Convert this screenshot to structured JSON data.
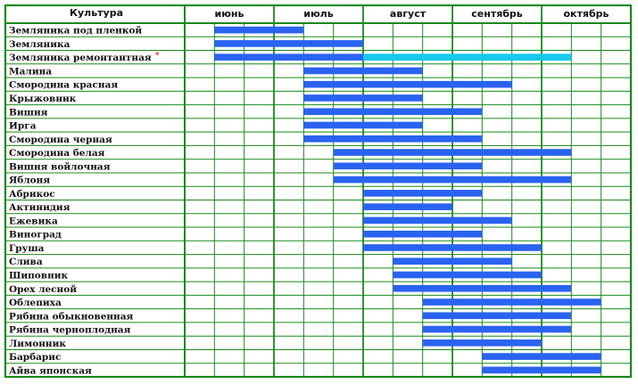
{
  "chart_data": {
    "type": "gantt",
    "header": {
      "crop_column": "Культура",
      "months": [
        "июнь",
        "июль",
        "август",
        "сентябрь",
        "октябрь"
      ],
      "subperiods_per_month": 3
    },
    "colors": {
      "grid": "#1a8a1a",
      "bar": "#2a63f0",
      "bar_extended": "#18c8ea",
      "asterisk": "#e00000"
    },
    "rows": [
      {
        "name": "Земляника под пленкой",
        "bars": [
          {
            "start": 1,
            "end": 4
          }
        ]
      },
      {
        "name": "Земляника",
        "bars": [
          {
            "start": 1,
            "end": 6
          }
        ]
      },
      {
        "name": "Земляника ремонтантная",
        "star": "*",
        "bars": [
          {
            "start": 1,
            "end": 6
          },
          {
            "start": 6,
            "end": 13,
            "kind": "extended"
          }
        ]
      },
      {
        "name": "Малина",
        "bars": [
          {
            "start": 4,
            "end": 8
          }
        ]
      },
      {
        "name": "Смородина красная",
        "bars": [
          {
            "start": 4,
            "end": 11
          }
        ]
      },
      {
        "name": "Крыжовник",
        "bars": [
          {
            "start": 4,
            "end": 8
          }
        ]
      },
      {
        "name": "Вишня",
        "bars": [
          {
            "start": 4,
            "end": 10
          }
        ]
      },
      {
        "name": "Ирга",
        "bars": [
          {
            "start": 4,
            "end": 8
          }
        ]
      },
      {
        "name": "Смородина черная",
        "bars": [
          {
            "start": 4,
            "end": 10
          }
        ]
      },
      {
        "name": "Смородина белая",
        "bars": [
          {
            "start": 5,
            "end": 13
          }
        ]
      },
      {
        "name": "Вишня войлочная",
        "bars": [
          {
            "start": 5,
            "end": 10
          }
        ]
      },
      {
        "name": "Яблоня",
        "bars": [
          {
            "start": 5,
            "end": 13
          }
        ]
      },
      {
        "name": "Абрикос",
        "bars": [
          {
            "start": 6,
            "end": 10
          }
        ]
      },
      {
        "name": "Актинидия",
        "bars": [
          {
            "start": 6,
            "end": 9
          }
        ]
      },
      {
        "name": "Ежевика",
        "bars": [
          {
            "start": 6,
            "end": 11
          }
        ]
      },
      {
        "name": "Виноград",
        "bars": [
          {
            "start": 6,
            "end": 10
          }
        ]
      },
      {
        "name": "Груша",
        "bars": [
          {
            "start": 6,
            "end": 12
          }
        ]
      },
      {
        "name": "Слива",
        "bars": [
          {
            "start": 7,
            "end": 11
          }
        ]
      },
      {
        "name": "Шиповник",
        "bars": [
          {
            "start": 7,
            "end": 12
          }
        ]
      },
      {
        "name": "Орех лесной",
        "bars": [
          {
            "start": 7,
            "end": 13
          }
        ]
      },
      {
        "name": "Облепиха",
        "bars": [
          {
            "start": 8,
            "end": 14
          }
        ]
      },
      {
        "name": "Рябина обыкновенная",
        "bars": [
          {
            "start": 8,
            "end": 13
          }
        ]
      },
      {
        "name": "Рябина черноплодная",
        "bars": [
          {
            "start": 8,
            "end": 13
          }
        ]
      },
      {
        "name": "Лимонник",
        "bars": [
          {
            "start": 8,
            "end": 12
          }
        ]
      },
      {
        "name": "Барбарис",
        "bars": [
          {
            "start": 10,
            "end": 14
          }
        ]
      },
      {
        "name": "Айва японская",
        "bars": [
          {
            "start": 10,
            "end": 14
          }
        ]
      }
    ]
  }
}
